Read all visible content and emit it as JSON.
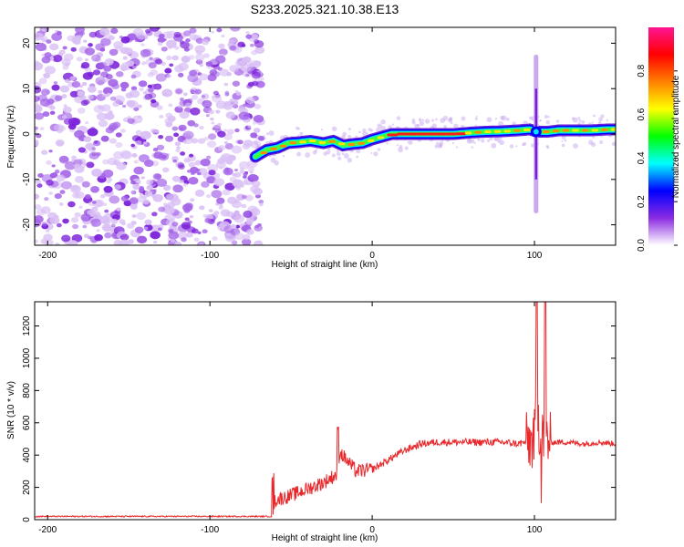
{
  "title": "S233.2025.321.10.38.E13",
  "chart_data": [
    {
      "type": "heatmap",
      "panel": "spectrogram",
      "xlabel": "Height of straight line (km)",
      "ylabel": "Frequency (Hz)",
      "xlim": [
        -208,
        150
      ],
      "ylim": [
        -24.5,
        23.5
      ],
      "xticks": [
        -200,
        -100,
        0,
        100
      ],
      "yticks": [
        -20,
        -10,
        0,
        10,
        20
      ],
      "noise_region_x": [
        -208,
        -72
      ],
      "ridge": {
        "x": [
          -72,
          -65,
          -58,
          -52,
          -45,
          -38,
          -30,
          -24,
          -18,
          -12,
          -6,
          0,
          6,
          12,
          20,
          30,
          40,
          50,
          60,
          70,
          80,
          90,
          97,
          102,
          108,
          115,
          125,
          135,
          145,
          150
        ],
        "y": [
          -5,
          -3.5,
          -3,
          -2,
          -1.8,
          -1.5,
          -2,
          -1.5,
          -2.5,
          -2.2,
          -2,
          -1.2,
          -0.6,
          0,
          0,
          0,
          0,
          0,
          0.3,
          0.5,
          0.6,
          0.8,
          1.0,
          0.5,
          0.5,
          0.8,
          0.8,
          0.8,
          1.0,
          1.0
        ]
      },
      "spike": {
        "x": 101,
        "y_range": [
          -17,
          17
        ]
      },
      "colorbar": {
        "label": "Normalized spectral amplitude",
        "range": [
          0,
          1
        ],
        "ticks": [
          "0.0",
          "0.2",
          "0.4",
          "0.6",
          "0.8"
        ],
        "tick_values": [
          0,
          0.2,
          0.4,
          0.6,
          0.8
        ],
        "colors": [
          "#ffffff",
          "#8a2be2",
          "#0000ff",
          "#00ffff",
          "#00ff00",
          "#ffff00",
          "#ff8000",
          "#ff0000",
          "#ff1493"
        ]
      }
    },
    {
      "type": "line",
      "panel": "snr",
      "xlabel": "Height of straight line (km)",
      "ylabel": "SNR (10 * v/v)",
      "xlim": [
        -208,
        150
      ],
      "ylim": [
        0,
        1350
      ],
      "xticks": [
        -200,
        -100,
        0,
        100
      ],
      "yticks": [
        0,
        200,
        400,
        600,
        800,
        1000,
        1200
      ],
      "series": [
        {
          "name": "SNR",
          "color": "#e8282b",
          "x": [
            -208,
            -150,
            -100,
            -62,
            -60,
            -50,
            -40,
            -30,
            -22,
            -20,
            -10,
            0,
            10,
            20,
            30,
            40,
            50,
            60,
            70,
            80,
            90,
            95,
            98,
            100,
            102,
            104,
            106,
            108,
            110,
            120,
            130,
            140,
            150
          ],
          "y": [
            20,
            20,
            20,
            20,
            120,
            150,
            190,
            230,
            280,
            420,
            300,
            310,
            370,
            430,
            470,
            480,
            480,
            480,
            480,
            480,
            470,
            480,
            480,
            500,
            700,
            450,
            550,
            500,
            480,
            480,
            470,
            480,
            470
          ]
        }
      ]
    }
  ]
}
